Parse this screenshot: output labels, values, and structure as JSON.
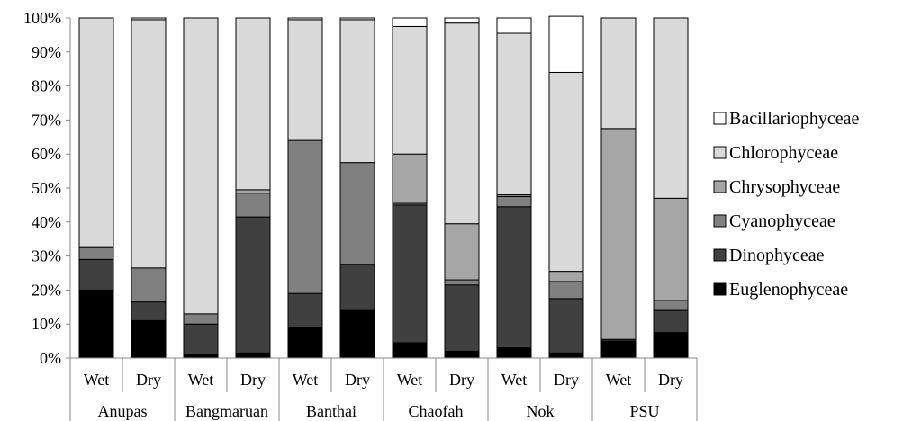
{
  "chart_data": {
    "type": "bar",
    "stacked": true,
    "percent": true,
    "title": "",
    "xlabel": "",
    "ylabel": "",
    "ylim": [
      0,
      100
    ],
    "yticks": [
      "0%",
      "10%",
      "20%",
      "30%",
      "40%",
      "50%",
      "60%",
      "70%",
      "80%",
      "90%",
      "100%"
    ],
    "grid": false,
    "legend_position": "right",
    "groups": [
      {
        "name": "Anupas",
        "categories": [
          "Wet",
          "Dry"
        ]
      },
      {
        "name": "Bangmaruan",
        "categories": [
          "Wet",
          "Dry"
        ]
      },
      {
        "name": "Banthai",
        "categories": [
          "Wet",
          "Dry"
        ]
      },
      {
        "name": "Chaofah",
        "categories": [
          "Wet",
          "Dry"
        ]
      },
      {
        "name": "Nok",
        "categories": [
          "Wet",
          "Dry"
        ]
      },
      {
        "name": "PSU",
        "categories": [
          "Wet",
          "Dry"
        ]
      }
    ],
    "categories": [
      "Anupas Wet",
      "Anupas Dry",
      "Bangmaruan Wet",
      "Bangmaruan Dry",
      "Banthai Wet",
      "Banthai Dry",
      "Chaofah Wet",
      "Chaofah Dry",
      "Nok Wet",
      "Nok Dry",
      "PSU Wet",
      "PSU Dry"
    ],
    "series": [
      {
        "name": "Euglenophyceae",
        "color": "#000000",
        "values": [
          20,
          11,
          1,
          1.5,
          9,
          14,
          4.5,
          2,
          3,
          1.5,
          5,
          7.5
        ]
      },
      {
        "name": "Dinophyceae",
        "color": "#404040",
        "values": [
          9,
          5.5,
          9,
          40,
          10,
          13.5,
          40.5,
          19.5,
          41.5,
          16,
          0.5,
          6.5
        ]
      },
      {
        "name": "Cyanophyceae",
        "color": "#808080",
        "values": [
          3.5,
          10,
          3,
          7,
          45,
          30,
          0.5,
          1.5,
          3,
          5,
          0,
          3
        ]
      },
      {
        "name": "Chrysophyceae",
        "color": "#a6a6a6",
        "values": [
          0,
          0,
          0,
          1,
          0,
          0,
          14.5,
          16.5,
          0.5,
          3,
          62,
          30
        ]
      },
      {
        "name": "Chlorophyceae",
        "color": "#d9d9d9",
        "values": [
          67.5,
          73,
          87,
          50.5,
          35.5,
          42,
          37.5,
          59,
          47.5,
          58.5,
          32.5,
          53
        ]
      },
      {
        "name": "Bacillariophyceae",
        "color": "#ffffff",
        "values": [
          0,
          0.5,
          0,
          0,
          0.5,
          0.5,
          2.5,
          1.5,
          4.5,
          16.5,
          0,
          0
        ]
      }
    ],
    "legend_order": [
      "Bacillariophyceae",
      "Chlorophyceae",
      "Chrysophyceae",
      "Cyanophyceae",
      "Dinophyceae",
      "Euglenophyceae"
    ]
  }
}
